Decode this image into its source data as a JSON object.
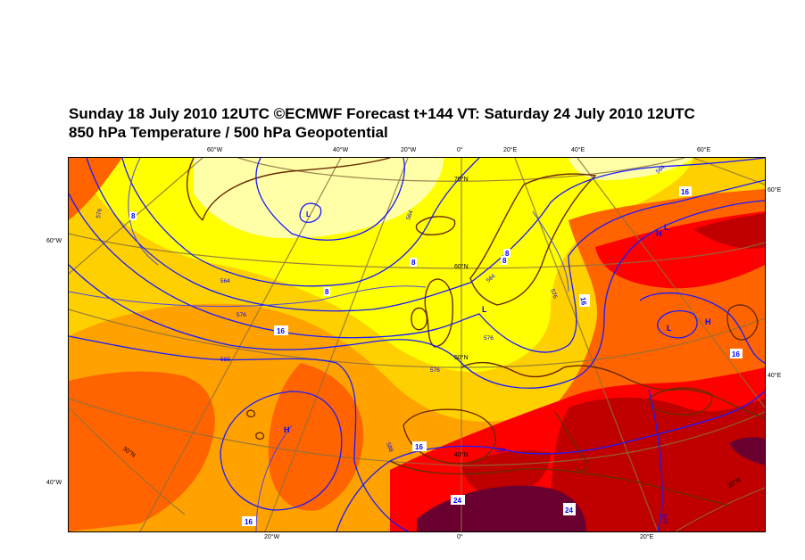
{
  "header": {
    "line1": "Sunday 18 July 2010 12UTC ©ECMWF Forecast t+144 VT: Saturday 24 July 2010 12UTC",
    "line2": "850 hPa Temperature / 500 hPa Geopotential"
  },
  "top_axis": [
    "60°W",
    "40°W",
    "20°W",
    "0°",
    "20°E",
    "40°E",
    "60°E"
  ],
  "bottom_axis": [
    "20°W",
    "0°",
    "20°E"
  ],
  "left_axis": [
    "60°W",
    "40°W"
  ],
  "right_axis": [
    "60°E",
    "40°E"
  ],
  "inner_labels": {
    "lat70": "70°N",
    "lat60": "60°N",
    "lat50": "50°N",
    "lat40": "40°N",
    "lat30w": "30°N",
    "lat30e": "30°N"
  },
  "pressure_centres": {
    "low_iceland": "L",
    "low_north_sea": "L",
    "low_russia": "L",
    "low_russia2": "L",
    "high_russia": "H",
    "high_russia2": "H",
    "high_azores": "H"
  },
  "geopotential_labels": {
    "g1": "576",
    "g2": "564",
    "g3": "576",
    "g4": "588",
    "g5": "564",
    "g6": "576",
    "g7": "588",
    "g8": "576",
    "g9": "564",
    "g10": "576",
    "g11": "588",
    "g12": "564",
    "g13": "576"
  },
  "temperature_labels": {
    "t1": "8",
    "t2": "8",
    "t3": "16",
    "t4": "8",
    "t5": "16",
    "t6": "16",
    "t7": "16",
    "t8": "16",
    "t9": "24",
    "t10": "24",
    "t11": "16",
    "t12": "8",
    "t13": "8"
  },
  "colors": {
    "pale_yellow": "#ffffa8",
    "yellow": "#ffff00",
    "light_orange": "#ffd000",
    "orange": "#ffa200",
    "dark_orange": "#ff6400",
    "red": "#ff0000",
    "dark_red": "#c00000",
    "maroon": "#6a0030",
    "contour_blue": "#0000ff",
    "coast_brown": "#6b2a00",
    "graticule": "#8a7040"
  }
}
